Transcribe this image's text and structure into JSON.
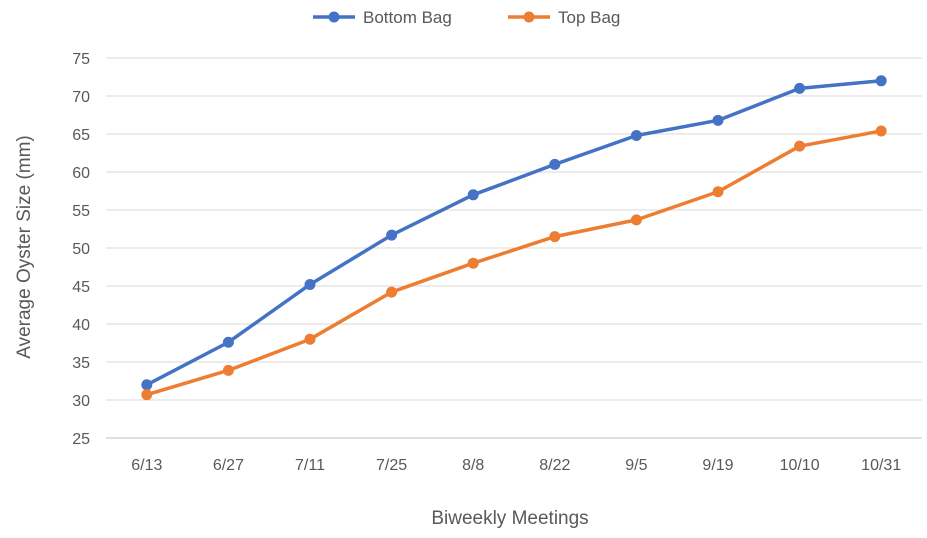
{
  "chart_data": {
    "type": "line",
    "title": "",
    "xlabel": "Biweekly Meetings",
    "ylabel": "Average Oyster Size (mm)",
    "categories": [
      "6/13",
      "6/27",
      "7/11",
      "7/25",
      "8/8",
      "8/22",
      "9/5",
      "9/19",
      "10/10",
      "10/31"
    ],
    "ylim": [
      25,
      75
    ],
    "yticks": [
      "25",
      "30",
      "35",
      "40",
      "45",
      "50",
      "55",
      "60",
      "65",
      "70",
      "75"
    ],
    "grid": true,
    "legend": "top-center",
    "series": [
      {
        "name": "Bottom Bag",
        "color": "#4472c4",
        "values": [
          32,
          37.6,
          45.2,
          51.7,
          57,
          61,
          64.8,
          66.8,
          71,
          72
        ]
      },
      {
        "name": "Top Bag",
        "color": "#ed7d31",
        "values": [
          30.7,
          33.9,
          38,
          44.2,
          48,
          51.5,
          53.7,
          57.4,
          63.4,
          65.4
        ]
      }
    ]
  }
}
